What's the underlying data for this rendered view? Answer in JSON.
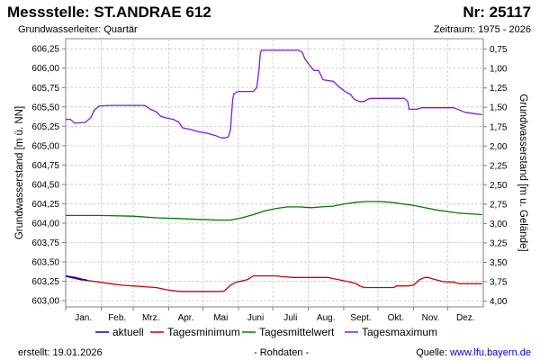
{
  "header": {
    "title": "Messstelle: ST.ANDRAE 612",
    "number": "Nr: 25117",
    "aquifer": "Grundwasserleiter: Quartär",
    "period": "Zeitraum: 1975 - 2026"
  },
  "footer": {
    "created": "erstellt:  19.01.2026",
    "rawdata": "- Rohdaten -",
    "source_label": "Quelle:",
    "source_link": "www.lfu.bayern.de"
  },
  "colors": {
    "aktuell": "#0000cc",
    "minimum": "#cc0000",
    "mittel": "#007a00",
    "maximum": "#7a1fd6",
    "grid": "#c8c8c8"
  },
  "chart_data": {
    "type": "line",
    "grid": true,
    "legend_position": "bottom",
    "ylabel_left": "Grundwasserstand [m ü. NN]",
    "ylabel_right": "Grundwasserstand [m u. Gelände]",
    "ylim_left": [
      602.92,
      606.38
    ],
    "ylim_right": [
      4.1,
      0.64
    ],
    "yticks_left": [
      "603,00",
      "603,25",
      "603,50",
      "603,75",
      "604,00",
      "604,25",
      "604,50",
      "604,75",
      "605,00",
      "605,25",
      "605,50",
      "605,75",
      "606,00",
      "606,25"
    ],
    "yticks_right": [
      "0,75",
      "1,00",
      "1,25",
      "1,50",
      "1,75",
      "2,00",
      "2,25",
      "2,50",
      "2,75",
      "3,00",
      "3,25",
      "3,50",
      "3,75",
      "4,00"
    ],
    "months": [
      "Jan.",
      "Feb.",
      "Mrz.",
      "Apr.",
      "Mai",
      "Juni",
      "Juli",
      "Aug.",
      "Sept.",
      "Okt.",
      "Nov.",
      "Dez."
    ],
    "x_unit": "day of year",
    "series": [
      {
        "name": "Tagesmaximum",
        "key": "maximum",
        "points": [
          [
            1,
            605.34
          ],
          [
            5,
            605.34
          ],
          [
            9,
            605.29
          ],
          [
            18,
            605.3
          ],
          [
            23,
            605.36
          ],
          [
            26,
            605.46
          ],
          [
            30,
            605.51
          ],
          [
            40,
            605.52
          ],
          [
            60,
            605.52
          ],
          [
            70,
            605.52
          ],
          [
            75,
            605.47
          ],
          [
            80,
            605.44
          ],
          [
            84,
            605.38
          ],
          [
            88,
            605.36
          ],
          [
            95,
            605.34
          ],
          [
            100,
            605.3
          ],
          [
            103,
            605.23
          ],
          [
            110,
            605.21
          ],
          [
            117,
            605.18
          ],
          [
            125,
            605.16
          ],
          [
            132,
            605.13
          ],
          [
            137,
            605.1
          ],
          [
            140,
            605.1
          ],
          [
            143,
            605.11
          ],
          [
            145,
            605.2
          ],
          [
            146,
            605.4
          ],
          [
            147,
            605.6
          ],
          [
            148,
            605.67
          ],
          [
            152,
            605.7
          ],
          [
            165,
            605.7
          ],
          [
            168,
            605.75
          ],
          [
            170,
            605.98
          ],
          [
            171,
            606.18
          ],
          [
            172,
            606.23
          ],
          [
            185,
            606.23
          ],
          [
            205,
            606.23
          ],
          [
            208,
            606.2
          ],
          [
            210,
            606.12
          ],
          [
            214,
            606.04
          ],
          [
            218,
            605.97
          ],
          [
            222,
            605.97
          ],
          [
            226,
            605.85
          ],
          [
            235,
            605.83
          ],
          [
            239,
            605.77
          ],
          [
            245,
            605.7
          ],
          [
            250,
            605.66
          ],
          [
            253,
            605.6
          ],
          [
            258,
            605.57
          ],
          [
            262,
            605.57
          ],
          [
            265,
            605.6
          ],
          [
            268,
            605.61
          ],
          [
            285,
            605.61
          ],
          [
            297,
            605.61
          ],
          [
            300,
            605.57
          ],
          [
            301,
            605.47
          ],
          [
            308,
            605.47
          ],
          [
            312,
            605.49
          ],
          [
            340,
            605.49
          ],
          [
            345,
            605.46
          ],
          [
            350,
            605.43
          ],
          [
            365,
            605.4
          ]
        ]
      },
      {
        "name": "Tagesmittelwert",
        "key": "mittel",
        "points": [
          [
            1,
            604.1
          ],
          [
            30,
            604.1
          ],
          [
            60,
            604.09
          ],
          [
            80,
            604.07
          ],
          [
            100,
            604.06
          ],
          [
            115,
            604.05
          ],
          [
            135,
            604.04
          ],
          [
            145,
            604.04
          ],
          [
            155,
            604.07
          ],
          [
            165,
            604.11
          ],
          [
            175,
            604.16
          ],
          [
            185,
            604.19
          ],
          [
            195,
            604.21
          ],
          [
            205,
            604.21
          ],
          [
            215,
            604.2
          ],
          [
            225,
            604.21
          ],
          [
            235,
            604.22
          ],
          [
            245,
            604.25
          ],
          [
            255,
            604.27
          ],
          [
            265,
            604.28
          ],
          [
            275,
            604.28
          ],
          [
            285,
            604.27
          ],
          [
            295,
            604.25
          ],
          [
            305,
            604.23
          ],
          [
            315,
            604.2
          ],
          [
            325,
            604.17
          ],
          [
            335,
            604.15
          ],
          [
            345,
            604.13
          ],
          [
            355,
            604.12
          ],
          [
            365,
            604.11
          ]
        ]
      },
      {
        "name": "Tagesminimum",
        "key": "minimum",
        "points": [
          [
            1,
            603.32
          ],
          [
            10,
            603.3
          ],
          [
            20,
            603.26
          ],
          [
            30,
            603.24
          ],
          [
            40,
            603.22
          ],
          [
            50,
            603.2
          ],
          [
            60,
            603.19
          ],
          [
            70,
            603.18
          ],
          [
            80,
            603.17
          ],
          [
            90,
            603.14
          ],
          [
            100,
            603.12
          ],
          [
            130,
            603.12
          ],
          [
            138,
            603.12
          ],
          [
            140,
            603.13
          ],
          [
            145,
            603.2
          ],
          [
            150,
            603.24
          ],
          [
            157,
            603.26
          ],
          [
            161,
            603.28
          ],
          [
            165,
            603.32
          ],
          [
            185,
            603.32
          ],
          [
            190,
            603.31
          ],
          [
            200,
            603.3
          ],
          [
            230,
            603.3
          ],
          [
            240,
            603.27
          ],
          [
            250,
            603.24
          ],
          [
            255,
            603.22
          ],
          [
            258,
            603.19
          ],
          [
            262,
            603.17
          ],
          [
            288,
            603.17
          ],
          [
            290,
            603.19
          ],
          [
            300,
            603.19
          ],
          [
            305,
            603.2
          ],
          [
            310,
            603.27
          ],
          [
            315,
            603.3
          ],
          [
            318,
            603.3
          ],
          [
            322,
            603.28
          ],
          [
            330,
            603.25
          ],
          [
            335,
            603.24
          ],
          [
            340,
            603.24
          ],
          [
            345,
            603.22
          ],
          [
            365,
            603.22
          ]
        ]
      },
      {
        "name": "aktuell",
        "key": "aktuell",
        "points": [
          [
            1,
            603.32
          ],
          [
            3,
            603.31
          ],
          [
            6,
            603.3
          ],
          [
            9,
            603.29
          ],
          [
            12,
            603.28
          ],
          [
            15,
            603.27
          ],
          [
            18,
            603.27
          ],
          [
            20,
            603.26
          ]
        ]
      }
    ]
  }
}
